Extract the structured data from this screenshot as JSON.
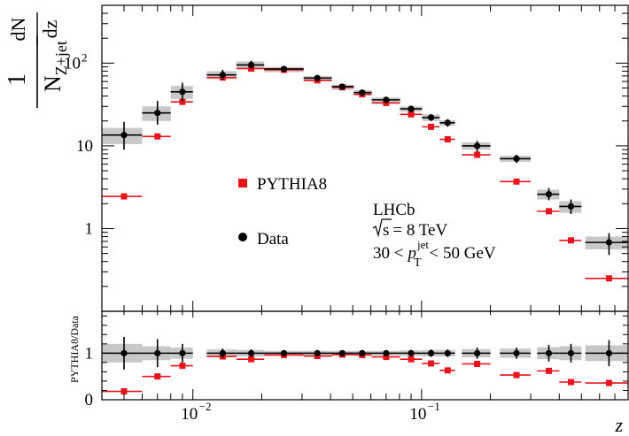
{
  "chart_data": {
    "type": "scatter",
    "xscale": "log",
    "yscale": "log",
    "xlim": [
      0.004,
      0.8
    ],
    "ylim": [
      0.1,
      500
    ],
    "xlabel": "z",
    "ylabel_main": "1",
    "ylabel_frac_num": "dN",
    "ylabel_frac_den": "dz",
    "ylabel_norm": "N",
    "ylabel_norm_sub": "Z+jet",
    "ytick_labels": {
      "1": "1",
      "10": "10",
      "100": "10",
      "100_exp": "2"
    },
    "xtick_labels": [
      {
        "value": 0.01,
        "base": "10",
        "exp": "−2"
      },
      {
        "value": 0.1,
        "base": "10",
        "exp": "−1"
      }
    ],
    "legend": {
      "placement": "center",
      "pythia_label": "PYTHIA8",
      "data_label": "Data",
      "pythia_color": "#e8141c",
      "data_color": "#000000"
    },
    "annotation": {
      "experiment": "LHCb",
      "energy_prefix": "s",
      "energy_value": "= 8 TeV",
      "range_left": "30 <",
      "p": "p",
      "p_sub": "T",
      "p_sup": "jet",
      "range_right": "< 50 GeV"
    },
    "bins": [
      [
        0.004,
        0.006
      ],
      [
        0.006,
        0.008
      ],
      [
        0.008,
        0.01
      ],
      [
        0.0115,
        0.0155
      ],
      [
        0.0155,
        0.0205
      ],
      [
        0.0205,
        0.0305
      ],
      [
        0.0305,
        0.0405
      ],
      [
        0.0405,
        0.0505
      ],
      [
        0.0505,
        0.0605
      ],
      [
        0.0605,
        0.0805
      ],
      [
        0.0805,
        0.1005
      ],
      [
        0.1005,
        0.12
      ],
      [
        0.12,
        0.14
      ],
      [
        0.15,
        0.2
      ],
      [
        0.22,
        0.3
      ],
      [
        0.32,
        0.4
      ],
      [
        0.4,
        0.5
      ],
      [
        0.52,
        0.8
      ]
    ],
    "series": [
      {
        "name": "Data",
        "color": "#000000",
        "x": [
          0.005,
          0.007,
          0.009,
          0.0135,
          0.018,
          0.025,
          0.035,
          0.045,
          0.055,
          0.07,
          0.09,
          0.11,
          0.13,
          0.175,
          0.26,
          0.36,
          0.45,
          0.66
        ],
        "y": [
          13.5,
          25,
          45,
          72,
          95,
          85,
          66,
          52,
          44,
          36,
          28,
          22,
          19,
          10,
          7,
          2.6,
          1.85,
          0.68
        ],
        "err_lo": [
          4.5,
          7,
          10,
          9,
          9,
          5,
          4,
          3,
          3,
          3,
          2.5,
          2,
          2,
          1.5,
          0.8,
          0.4,
          0.35,
          0.2
        ],
        "err_hi": [
          6,
          10,
          13,
          11,
          12,
          6,
          4,
          3,
          3,
          3,
          2.5,
          2,
          2,
          1.5,
          0.8,
          0.5,
          0.4,
          0.2
        ],
        "sys": [
          3,
          5,
          8,
          8,
          10,
          5,
          4,
          3,
          3,
          2.5,
          2,
          2,
          1.5,
          1,
          0.6,
          0.35,
          0.3,
          0.12
        ]
      },
      {
        "name": "PYTHIA8",
        "color": "#e8141c",
        "x": [
          0.005,
          0.007,
          0.009,
          0.0135,
          0.018,
          0.025,
          0.035,
          0.045,
          0.055,
          0.07,
          0.09,
          0.11,
          0.13,
          0.175,
          0.26,
          0.36,
          0.45,
          0.66
        ],
        "y": [
          2.45,
          13,
          34,
          67,
          86,
          83,
          62,
          51,
          42,
          33,
          24,
          17,
          12,
          7.8,
          3.7,
          1.62,
          0.72,
          0.25
        ]
      }
    ],
    "ratio": {
      "ylabel": "PYTHIA8/Data",
      "ylim": [
        0,
        1.9
      ],
      "yticks": [
        0,
        1
      ],
      "data_err": [
        0.35,
        0.3,
        0.2,
        0.1,
        0.08,
        0.06,
        0.05,
        0.05,
        0.06,
        0.06,
        0.07,
        0.08,
        0.08,
        0.12,
        0.12,
        0.18,
        0.2,
        0.28
      ],
      "data_sys": [
        0.2,
        0.15,
        0.12,
        0.08,
        0.07,
        0.05,
        0.05,
        0.05,
        0.05,
        0.05,
        0.06,
        0.07,
        0.07,
        0.09,
        0.1,
        0.13,
        0.15,
        0.17
      ],
      "pythia": [
        0.18,
        0.5,
        0.73,
        0.93,
        0.87,
        0.96,
        0.94,
        0.97,
        0.96,
        0.92,
        0.87,
        0.78,
        0.63,
        0.77,
        0.53,
        0.62,
        0.38,
        0.36
      ]
    }
  }
}
